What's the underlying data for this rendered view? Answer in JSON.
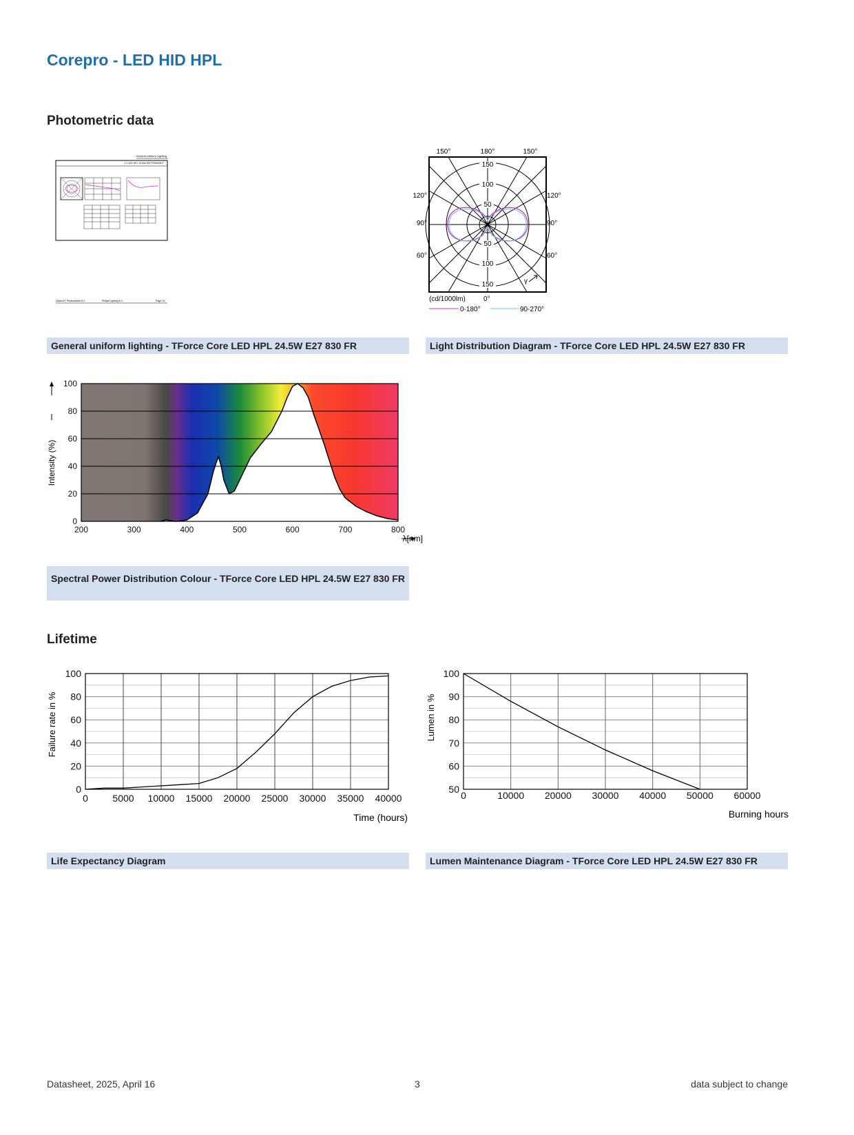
{
  "title": "Corepro - LED HID HPL",
  "photometric": {
    "heading": "Photometric data",
    "thumbnail": {
      "header": "General Uniform Lighting",
      "subheader": "1 x LED HPL 24.5W 500 FR/830/E27",
      "footer_left": "Dialux/LF Photometrics 8.0",
      "footer_mid": "Philips Lighting B.V.",
      "footer_right": "Page 1/1"
    },
    "caption_left": "General uniform lighting - TForce Core LED HPL 24.5W E27 830 FR",
    "caption_right": "Light Distribution Diagram - TForce Core LED HPL 24.5W E27 830 FR"
  },
  "polar": {
    "angles_top": [
      "150°",
      "180°",
      "150°"
    ],
    "angles_left": [
      "120°",
      "90°",
      "60°"
    ],
    "angles_right": [
      "120°",
      "90°",
      "60°"
    ],
    "radial_labels": [
      "150",
      "100",
      "50",
      "50",
      "100",
      "150"
    ],
    "unit": "(cd/1000lm)",
    "bottom_angle": "0°",
    "gamma": "γ",
    "legend": [
      {
        "label": "0-180°",
        "color": "#cc33cc"
      },
      {
        "label": "90-270°",
        "color": "#66c4d8"
      }
    ]
  },
  "spectrum": {
    "caption": "Spectral Power Distribution Colour - TForce Core LED HPL 24.5W E27 830 FR"
  },
  "lifetime": {
    "heading": "Lifetime",
    "caption_left": "Life Expectancy Diagram",
    "caption_right": "Lumen Maintenance Diagram - TForce Core LED HPL 24.5W E27 830 FR"
  },
  "footer": {
    "left": "Datasheet, 2025, April 16",
    "center": "3",
    "right": "data subject to change"
  },
  "chart_data": [
    {
      "type": "line",
      "ylabel": "Intensity (%)",
      "xlabel": "λ[nm]",
      "xlim": [
        200,
        800
      ],
      "ylim": [
        0,
        100
      ],
      "xticks": [
        "200",
        "300",
        "400",
        "500",
        "600",
        "700",
        "800"
      ],
      "yticks": [
        "0",
        "20",
        "40",
        "60",
        "80",
        "100"
      ],
      "x": [
        350,
        360,
        380,
        400,
        420,
        440,
        450,
        455,
        460,
        465,
        470,
        480,
        490,
        500,
        520,
        540,
        560,
        580,
        590,
        600,
        610,
        620,
        630,
        640,
        660,
        680,
        690,
        700,
        720,
        740,
        760,
        780,
        800
      ],
      "y": [
        0,
        1,
        0,
        1,
        6,
        20,
        36,
        42,
        47,
        40,
        30,
        20,
        22,
        30,
        46,
        56,
        65,
        80,
        90,
        98,
        100,
        97,
        90,
        78,
        56,
        32,
        23,
        17,
        11,
        7,
        4,
        2,
        1
      ]
    },
    {
      "type": "line",
      "ylabel": "Failure rate in %",
      "xlabel": "Time (hours)",
      "xlim": [
        0,
        40000
      ],
      "ylim": [
        0,
        100
      ],
      "xticks": [
        "0",
        "5000",
        "10000",
        "15000",
        "20000",
        "25000",
        "30000",
        "35000",
        "40000"
      ],
      "yticks": [
        "0",
        "20",
        "40",
        "60",
        "80",
        "100"
      ],
      "x": [
        0,
        2500,
        5000,
        7500,
        10000,
        12500,
        15000,
        17500,
        20000,
        22500,
        25000,
        27500,
        30000,
        32500,
        35000,
        37500,
        40000
      ],
      "y": [
        0,
        1,
        1,
        2,
        3,
        4,
        5,
        10,
        18,
        32,
        48,
        66,
        80,
        89,
        94,
        97,
        98
      ]
    },
    {
      "type": "line",
      "ylabel": "Lumen in %",
      "xlabel": "Burning hours",
      "xlim": [
        0,
        60000
      ],
      "ylim": [
        50,
        100
      ],
      "xticks": [
        "0",
        "10000",
        "20000",
        "30000",
        "40000",
        "50000",
        "60000"
      ],
      "yticks": [
        "50",
        "60",
        "70",
        "80",
        "90",
        "100"
      ],
      "x": [
        0,
        10000,
        20000,
        30000,
        40000,
        50000
      ],
      "y": [
        100,
        88,
        77,
        67,
        58,
        50
      ]
    }
  ]
}
